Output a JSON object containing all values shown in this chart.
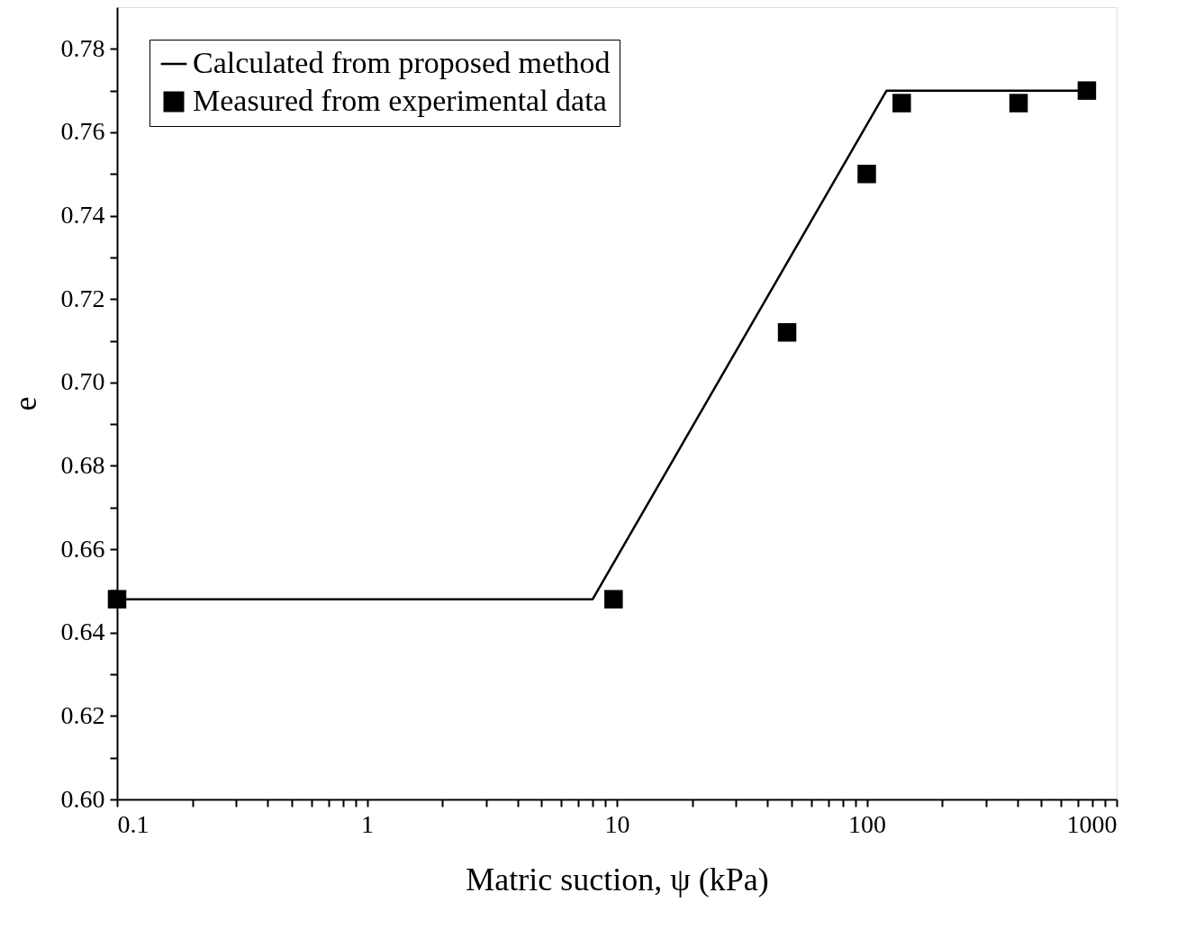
{
  "chart_data": {
    "type": "line",
    "xlabel": "Matric suction, ψ (kPa)",
    "ylabel": "e",
    "series": [
      {
        "name": "Calculated from proposed method",
        "color": "#000000",
        "marker": "none",
        "line_style": "solid",
        "x": [
          0.1,
          8,
          120,
          750
        ],
        "values": [
          0.648,
          0.648,
          0.77,
          0.77
        ]
      },
      {
        "name": "Measured from experimental data",
        "type": "scatter",
        "color": "#000000",
        "marker": "square",
        "x": [
          0.1,
          9.7,
          48,
          100,
          138,
          405,
          760
        ],
        "values": [
          0.648,
          0.648,
          0.712,
          0.75,
          0.767,
          0.767,
          0.77
        ]
      }
    ],
    "log": "x",
    "xlim": [
      0.1,
      1000
    ],
    "ylim": [
      0.6,
      0.79
    ],
    "xticks": [
      0.1,
      {
        "value": 0.2,
        "label": null
      },
      {
        "value": 0.3,
        "label": null
      },
      {
        "value": 0.4,
        "label": null
      },
      {
        "value": 0.5,
        "label": null
      },
      {
        "value": 0.6,
        "label": null
      },
      {
        "value": 0.7,
        "label": null
      },
      {
        "value": 0.8,
        "label": null
      },
      {
        "value": 0.9,
        "label": null
      },
      1,
      {
        "value": 2,
        "label": null
      },
      {
        "value": 3,
        "label": null
      },
      {
        "value": 4,
        "label": null
      },
      {
        "value": 5,
        "label": null
      },
      {
        "value": 6,
        "label": null
      },
      {
        "value": 7,
        "label": null
      },
      {
        "value": 8,
        "label": null
      },
      {
        "value": 9,
        "label": null
      },
      10,
      {
        "value": 20,
        "label": null
      },
      {
        "value": 30,
        "label": null
      },
      {
        "value": 40,
        "label": null
      },
      {
        "value": 50,
        "label": null
      },
      {
        "value": 60,
        "label": null
      },
      {
        "value": 70,
        "label": null
      },
      {
        "value": 80,
        "label": null
      },
      {
        "value": 90,
        "label": null
      },
      100,
      {
        "value": 200,
        "label": null
      },
      {
        "value": 300,
        "label": null
      },
      {
        "value": 400,
        "label": null
      },
      {
        "value": 500,
        "label": null
      },
      {
        "value": 600,
        "label": null
      },
      {
        "value": 700,
        "label": null
      },
      {
        "value": 800,
        "label": null
      },
      {
        "value": 900,
        "label": null
      },
      1000
    ],
    "yticks": [
      {
        "value": 0.6,
        "label": "0.60"
      },
      {
        "value": 0.61,
        "label": null
      },
      {
        "value": 0.62,
        "label": "0.62"
      },
      {
        "value": 0.63,
        "label": null
      },
      {
        "value": 0.64,
        "label": "0.64"
      },
      {
        "value": 0.65,
        "label": null
      },
      {
        "value": 0.66,
        "label": "0.66"
      },
      {
        "value": 0.67,
        "label": null
      },
      {
        "value": 0.68,
        "label": "0.68"
      },
      {
        "value": 0.69,
        "label": null
      },
      {
        "value": 0.7,
        "label": "0.70"
      },
      {
        "value": 0.71,
        "label": null
      },
      {
        "value": 0.72,
        "label": "0.72"
      },
      {
        "value": 0.73,
        "label": null
      },
      {
        "value": 0.74,
        "label": "0.74"
      },
      {
        "value": 0.75,
        "label": null
      },
      {
        "value": 0.76,
        "label": "0.76"
      },
      {
        "value": 0.77,
        "label": null
      },
      {
        "value": 0.78,
        "label": "0.78"
      }
    ],
    "grid": false,
    "legend": "top left"
  }
}
